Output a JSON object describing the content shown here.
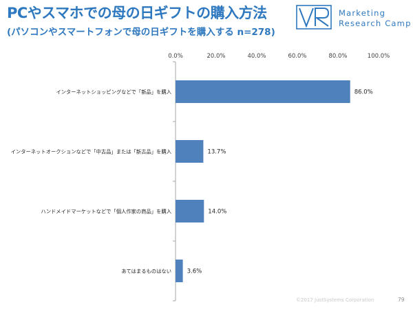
{
  "header": {
    "title": "PCやスマホでの母の日ギフトの購入方法",
    "subtitle": "(パソコンやスマートフォンで母の日ギフトを購入する n=278)"
  },
  "logo": {
    "mark": "VR",
    "line1": "Marketing",
    "line2": "Research Camp",
    "color": "#2e78c0"
  },
  "chart_data": {
    "type": "bar",
    "orientation": "horizontal",
    "categories": [
      "インターネットショッピングなどで「新品」を購入",
      "インターネットオークションなどで「中古品」または「新古品」を購入",
      "ハンドメイドマーケットなどで「個人作家の商品」を購入",
      "あてはまるものはない"
    ],
    "values": [
      86.0,
      13.7,
      14.0,
      3.6
    ],
    "value_labels": [
      "86.0%",
      "13.7%",
      "14.0%",
      "3.6%"
    ],
    "ticks": [
      "0.0%",
      "20.0%",
      "40.0%",
      "60.0%",
      "80.0%",
      "100.0%"
    ],
    "xlim": [
      0,
      100
    ],
    "axis_position": "top",
    "grid": false,
    "bar_color": "#4f81bd"
  },
  "footer": {
    "copyright": "©2017 JustSystems Corporation",
    "page": "79"
  }
}
